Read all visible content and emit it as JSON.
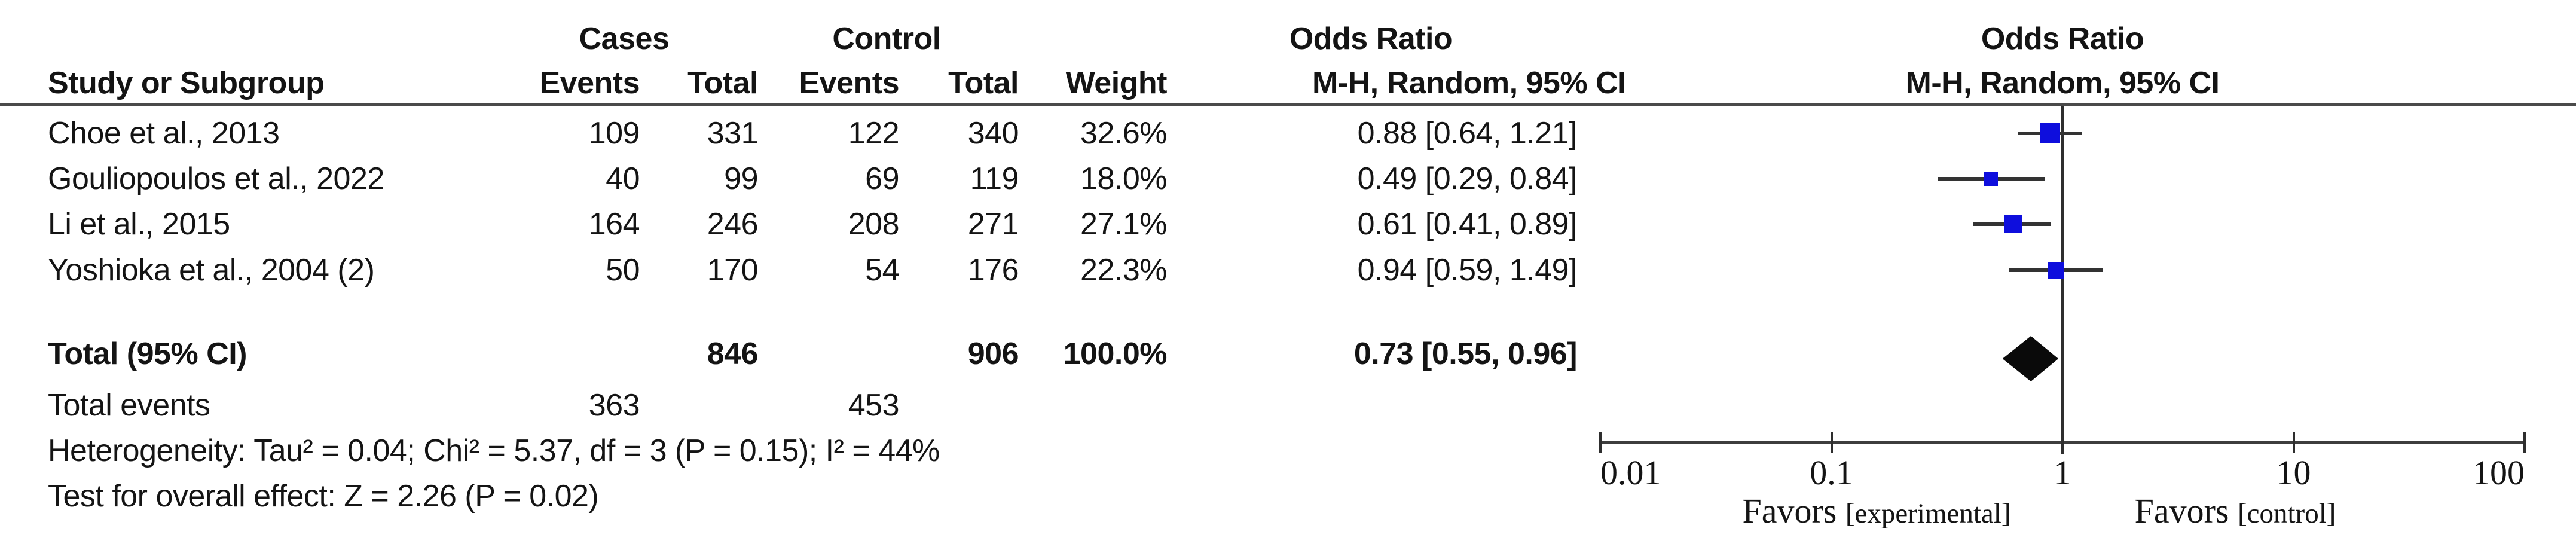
{
  "header": {
    "cases_group": "Cases",
    "control_group": "Control",
    "odds_ratio_left": "Odds Ratio",
    "odds_ratio_right": "Odds Ratio",
    "study": "Study or Subgroup",
    "events_cases": "Events",
    "total_cases": "Total",
    "events_control": "Events",
    "total_control": "Total",
    "weight": "Weight",
    "mh_random_left": "M-H, Random, 95% CI",
    "mh_random_right": "M-H, Random, 95% CI"
  },
  "rows": [
    {
      "study": "Choe et al., 2013",
      "events_cases": "109",
      "total_cases": "331",
      "events_control": "122",
      "total_control": "340",
      "weight": "32.6%",
      "or_ci": "0.88 [0.64, 1.21]"
    },
    {
      "study": "Gouliopoulos et al., 2022",
      "events_cases": "40",
      "total_cases": "99",
      "events_control": "69",
      "total_control": "119",
      "weight": "18.0%",
      "or_ci": "0.49 [0.29, 0.84]"
    },
    {
      "study": "Li et al., 2015",
      "events_cases": "164",
      "total_cases": "246",
      "events_control": "208",
      "total_control": "271",
      "weight": "27.1%",
      "or_ci": "0.61 [0.41, 0.89]"
    },
    {
      "study": "Yoshioka et al., 2004 (2)",
      "events_cases": "50",
      "total_cases": "170",
      "events_control": "54",
      "total_control": "176",
      "weight": "22.3%",
      "or_ci": "0.94 [0.59, 1.49]"
    }
  ],
  "total_row": {
    "label": "Total (95% CI)",
    "total_cases": "846",
    "total_control": "906",
    "weight": "100.0%",
    "or_ci": "0.73 [0.55, 0.96]"
  },
  "total_events": {
    "label": "Total events",
    "cases": "363",
    "control": "453"
  },
  "footer": {
    "heterogeneity": "Heterogeneity: Tau² = 0.04; Chi² = 5.37, df = 3 (P = 0.15); I² = 44%",
    "overall_effect": "Test for overall effect: Z = 2.26 (P = 0.02)"
  },
  "axis": {
    "tick_labels": [
      "0.01",
      "0.1",
      "1",
      "10",
      "100"
    ],
    "favors_left_main": "Favors",
    "favors_left_sub": "[experimental]",
    "favors_right_main": "Favors",
    "favors_right_sub": "[control]"
  },
  "colors": {
    "square_blue": "#0E0EDD",
    "diamond_black": "#0a0a0a",
    "ci_line_gray": "#333333",
    "rule_gray": "#4a4a4a"
  },
  "chart_data": {
    "type": "forest",
    "effect_measure": "Odds Ratio, M-H, Random, 95% CI",
    "x_scale": "log10",
    "x_ticks": [
      0.01,
      0.1,
      1,
      10,
      100
    ],
    "xlim": [
      0.01,
      100
    ],
    "null_line": 1,
    "studies": [
      {
        "name": "Choe et al., 2013",
        "events_cases": 109,
        "total_cases": 331,
        "events_control": 122,
        "total_control": 340,
        "weight_pct": 32.6,
        "or": 0.88,
        "ci_low": 0.64,
        "ci_high": 1.21
      },
      {
        "name": "Gouliopoulos et al., 2022",
        "events_cases": 40,
        "total_cases": 99,
        "events_control": 69,
        "total_control": 119,
        "weight_pct": 18.0,
        "or": 0.49,
        "ci_low": 0.29,
        "ci_high": 0.84
      },
      {
        "name": "Li et al., 2015",
        "events_cases": 164,
        "total_cases": 246,
        "events_control": 208,
        "total_control": 271,
        "weight_pct": 27.1,
        "or": 0.61,
        "ci_low": 0.41,
        "ci_high": 0.89
      },
      {
        "name": "Yoshioka et al., 2004 (2)",
        "events_cases": 50,
        "total_cases": 170,
        "events_control": 54,
        "total_control": 176,
        "weight_pct": 22.3,
        "or": 0.94,
        "ci_low": 0.59,
        "ci_high": 1.49
      }
    ],
    "total": {
      "label": "Total (95% CI)",
      "or": 0.73,
      "ci_low": 0.55,
      "ci_high": 0.96,
      "weight_pct": 100.0,
      "heterogeneity": {
        "tau2": 0.04,
        "chi2": 5.37,
        "df": 3,
        "p": 0.15,
        "i2_pct": 44
      },
      "overall_effect": {
        "z": 2.26,
        "p": 0.02
      }
    }
  }
}
